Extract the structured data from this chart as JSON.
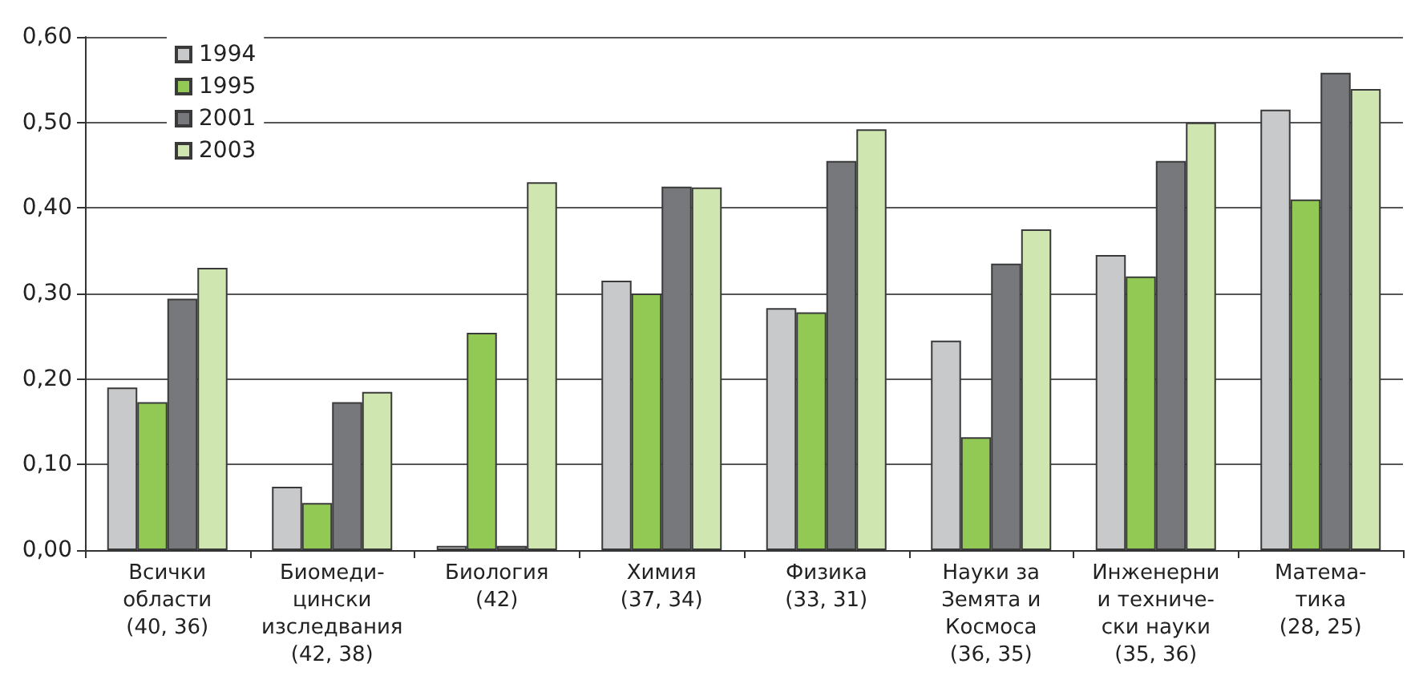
{
  "chart_data": {
    "type": "bar",
    "categories": [
      "Всички\nобласти\n(40, 36)",
      "Биомеди-\nцински\nизследвания\n(42, 38)",
      "Биология\n(42)",
      "Химия\n(37, 34)",
      "Физика\n(33, 31)",
      "Науки за\nЗемята и\nКосмоса\n(36, 35)",
      "Инженерни\nи техниче-\nски науки\n(35, 36)",
      "Матема-\nтика\n(28, 25)"
    ],
    "series": [
      {
        "name": "1994",
        "color": "#c8c9cb",
        "values": [
          0.19,
          0.074,
          0.005,
          0.315,
          0.283,
          0.245,
          0.345,
          0.515
        ]
      },
      {
        "name": "1995",
        "color": "#92c954",
        "values": [
          0.173,
          0.055,
          0.254,
          0.3,
          0.278,
          0.132,
          0.32,
          0.41
        ]
      },
      {
        "name": "2001",
        "color": "#77787b",
        "values": [
          0.294,
          0.173,
          0.005,
          0.425,
          0.455,
          0.335,
          0.455,
          0.558
        ]
      },
      {
        "name": "2003",
        "color": "#cfe6b0",
        "values": [
          0.33,
          0.185,
          0.43,
          0.424,
          0.492,
          0.375,
          0.5,
          0.539
        ]
      }
    ],
    "ylim": [
      0,
      0.6
    ],
    "yticks": [
      {
        "value": 0,
        "label": "0,00"
      },
      {
        "value": 0.1,
        "label": "0,10"
      },
      {
        "value": 0.2,
        "label": "0,20"
      },
      {
        "value": 0.3,
        "label": "0,30"
      },
      {
        "value": 0.4,
        "label": "0,40"
      },
      {
        "value": 0.5,
        "label": "0,50"
      },
      {
        "value": 0.6,
        "label": "0,60"
      }
    ],
    "grid": "y",
    "legend": "top left"
  }
}
